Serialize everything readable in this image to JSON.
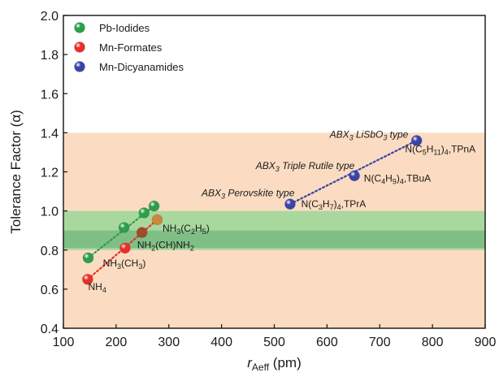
{
  "chart_data": {
    "type": "scatter",
    "xlabel": {
      "main": "r",
      "sub": "Aeff",
      "unit": " (pm)"
    },
    "ylabel": "Tolerance Factor (α)",
    "xlim": [
      100,
      900
    ],
    "ylim": [
      0.4,
      2.0
    ],
    "xticks": [
      "100",
      "200",
      "300",
      "400",
      "500",
      "600",
      "700",
      "800",
      "900"
    ],
    "yticks": [
      "0.4",
      "0.6",
      "0.8",
      "1.0",
      "1.2",
      "1.4",
      "1.6",
      "1.8",
      "2.0"
    ],
    "grid": false,
    "legend_position": "top-left",
    "bands": [
      {
        "y0": 0.4,
        "y1": 1.4,
        "color": "#fbdcc2"
      },
      {
        "y0": 0.8,
        "y1": 1.0,
        "color": "#a9d89f"
      },
      {
        "y0": 0.81,
        "y1": 0.9,
        "color": "#7fbf86"
      }
    ],
    "series": [
      {
        "name": "Pb-Iodides",
        "color": "#2e9e4a",
        "points": [
          [
            147,
            0.76
          ],
          [
            215,
            0.915
          ],
          [
            253,
            0.99
          ],
          [
            272,
            1.025
          ]
        ]
      },
      {
        "name": "Mn-Formates",
        "color": "#e8302a",
        "points": [
          [
            146,
            0.65
          ],
          [
            217,
            0.81
          ],
          [
            249,
            0.89
          ],
          [
            278,
            0.955
          ]
        ]
      },
      {
        "name": "Mn-Dicyanamides",
        "color": "#3a43a8",
        "points": [
          [
            530,
            1.035
          ],
          [
            652,
            1.18
          ],
          [
            770,
            1.36
          ]
        ]
      }
    ],
    "annotations": {
      "cation_labels": [
        {
          "main": "NH",
          "sub": "4",
          "rest": "",
          "x": 147,
          "y": 0.595
        },
        {
          "main": "NH",
          "sub": "3",
          "rest": "(CH",
          "sub2": "3",
          "rest2": ")",
          "x": 175,
          "y": 0.715
        },
        {
          "main": "NH",
          "sub": "2",
          "rest": "(CH)NH",
          "sub2": "2",
          "rest2": "",
          "x": 240,
          "y": 0.81
        },
        {
          "main": "NH",
          "sub": "3",
          "rest": "(C",
          "sub2": "2",
          "rest2": "H",
          "sub3": "5",
          "rest3": ")",
          "x": 288,
          "y": 0.895
        },
        {
          "main": "N(C",
          "sub": "3",
          "rest": "H",
          "sub2": "7",
          "rest2": ")",
          "sub3": "4",
          "rest3": ",TPrA",
          "x": 551,
          "y": 1.02
        },
        {
          "main": "N(C",
          "sub": "4",
          "rest": "H",
          "sub2": "9",
          "rest2": ")",
          "sub3": "4",
          "rest3": ",TBuA",
          "x": 670,
          "y": 1.15
        },
        {
          "main": "N(C",
          "sub": "5",
          "rest": "H",
          "sub2": "11",
          "rest2": ")",
          "sub3": "4",
          "rest3": ",TPnA",
          "x": 748,
          "y": 1.3
        }
      ],
      "structure_labels": [
        {
          "pre": "ABX",
          "sub": "3",
          "post": " Perovskite type",
          "x": 362,
          "y": 1.075
        },
        {
          "pre": "ABX",
          "sub": "3",
          "post": " Triple Rutile type",
          "x": 465,
          "y": 1.215
        },
        {
          "pre": "ABX",
          "sub": "3",
          "post": " LiSbO",
          "sub2": "3",
          "post2": " type",
          "x": 605,
          "y": 1.375
        }
      ]
    }
  }
}
